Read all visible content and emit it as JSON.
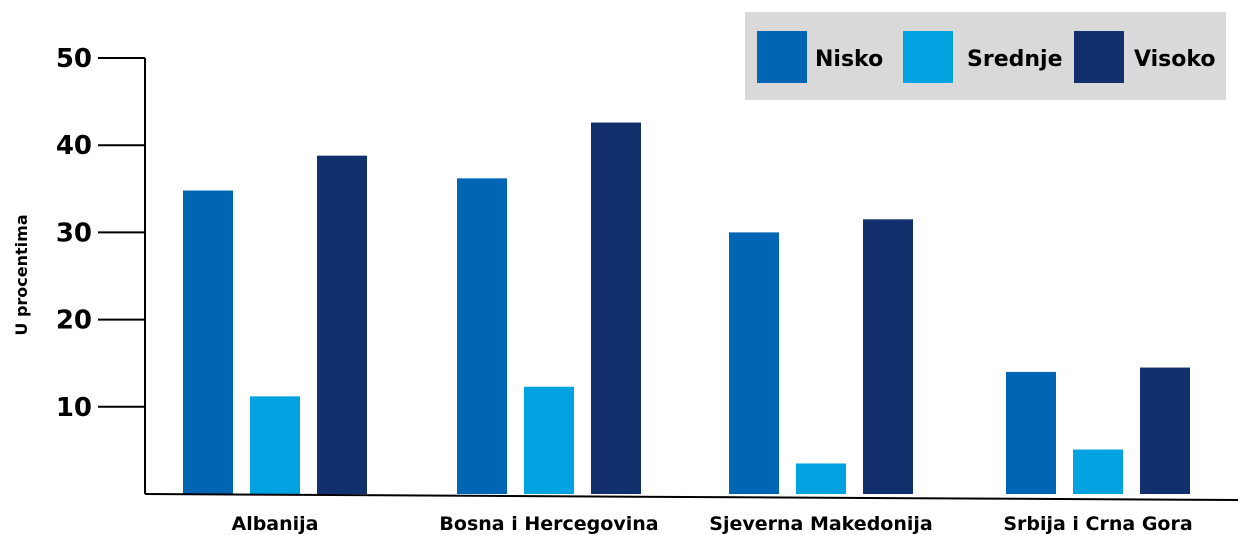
{
  "chart_data": {
    "type": "bar",
    "ylabel": "U procentima",
    "xlabel": "",
    "ylim": [
      0,
      50
    ],
    "yticks": [
      10,
      20,
      30,
      40,
      50
    ],
    "grid": false,
    "legend_position": "top-right",
    "categories": [
      "Albanija",
      "Bosna i Hercegovina",
      "Sjeverna Makedonija",
      "Srbija i Crna Gora"
    ],
    "series": [
      {
        "name": "Nisko",
        "color": "#0066b3",
        "values": [
          34.8,
          36.2,
          30.0,
          14.0
        ]
      },
      {
        "name": "Srednje",
        "color": "#00a3e0",
        "values": [
          11.2,
          12.3,
          3.5,
          5.1
        ]
      },
      {
        "name": "Visoko",
        "color": "#12306b",
        "values": [
          38.8,
          42.6,
          31.5,
          14.5
        ]
      }
    ],
    "legend_background": "#d9d9d9"
  }
}
